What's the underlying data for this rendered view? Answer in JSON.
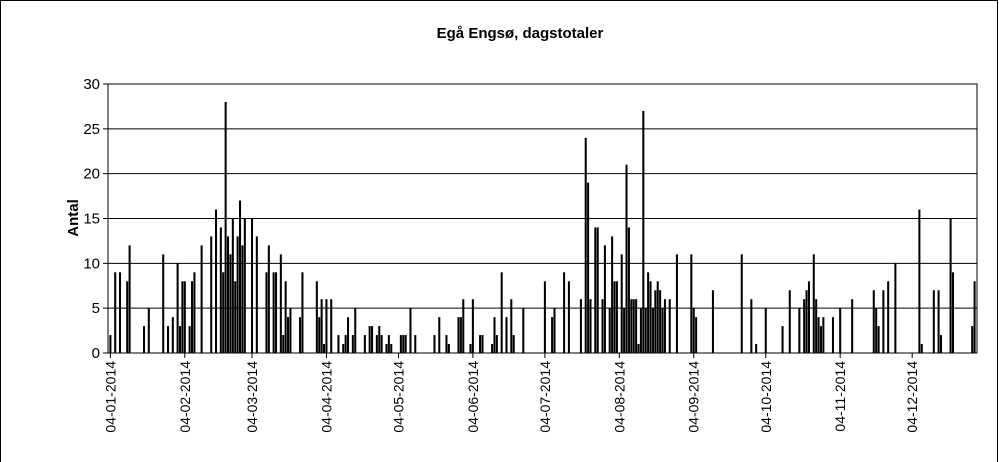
{
  "chart_data": {
    "type": "bar",
    "title": "Egå Engsø, dagstotaler",
    "y_label": "Antal",
    "x": [
      "2014-01-04",
      "2014-01-06",
      "2014-01-08",
      "2014-01-11",
      "2014-01-12",
      "2014-01-18",
      "2014-01-20",
      "2014-01-26",
      "2014-01-28",
      "2014-01-30",
      "2014-02-01",
      "2014-02-02",
      "2014-02-03",
      "2014-02-04",
      "2014-02-06",
      "2014-02-07",
      "2014-02-08",
      "2014-02-11",
      "2014-02-15",
      "2014-02-17",
      "2014-02-19",
      "2014-02-20",
      "2014-02-21",
      "2014-02-22",
      "2014-02-23",
      "2014-02-24",
      "2014-02-25",
      "2014-02-26",
      "2014-02-27",
      "2014-02-28",
      "2014-03-01",
      "2014-03-04",
      "2014-03-06",
      "2014-03-10",
      "2014-03-11",
      "2014-03-13",
      "2014-03-14",
      "2014-03-16",
      "2014-03-17",
      "2014-03-18",
      "2014-03-19",
      "2014-03-20",
      "2014-03-24",
      "2014-03-25",
      "2014-03-31",
      "2014-04-01",
      "2014-04-02",
      "2014-04-03",
      "2014-04-04",
      "2014-04-06",
      "2014-04-09",
      "2014-04-11",
      "2014-04-12",
      "2014-04-13",
      "2014-04-15",
      "2014-04-16",
      "2014-04-20",
      "2014-04-22",
      "2014-04-23",
      "2014-04-25",
      "2014-04-26",
      "2014-04-27",
      "2014-04-29",
      "2014-04-30",
      "2014-05-01",
      "2014-05-05",
      "2014-05-06",
      "2014-05-07",
      "2014-05-09",
      "2014-05-11",
      "2014-05-19",
      "2014-05-21",
      "2014-05-24",
      "2014-05-25",
      "2014-05-29",
      "2014-05-30",
      "2014-05-31",
      "2014-06-03",
      "2014-06-04",
      "2014-06-07",
      "2014-06-08",
      "2014-06-12",
      "2014-06-13",
      "2014-06-14",
      "2014-06-16",
      "2014-06-18",
      "2014-06-20",
      "2014-06-21",
      "2014-06-25",
      "2014-07-04",
      "2014-07-07",
      "2014-07-08",
      "2014-07-12",
      "2014-07-14",
      "2014-07-19",
      "2014-07-21",
      "2014-07-22",
      "2014-07-23",
      "2014-07-25",
      "2014-07-26",
      "2014-07-28",
      "2014-07-29",
      "2014-07-31",
      "2014-08-01",
      "2014-08-02",
      "2014-08-03",
      "2014-08-05",
      "2014-08-06",
      "2014-08-07",
      "2014-08-08",
      "2014-08-09",
      "2014-08-10",
      "2014-08-11",
      "2014-08-12",
      "2014-08-13",
      "2014-08-14",
      "2014-08-15",
      "2014-08-16",
      "2014-08-17",
      "2014-08-18",
      "2014-08-19",
      "2014-08-20",
      "2014-08-21",
      "2014-08-22",
      "2014-08-23",
      "2014-08-25",
      "2014-08-28",
      "2014-09-03",
      "2014-09-04",
      "2014-09-05",
      "2014-09-12",
      "2014-09-24",
      "2014-09-28",
      "2014-09-30",
      "2014-10-04",
      "2014-10-11",
      "2014-10-14",
      "2014-10-18",
      "2014-10-20",
      "2014-10-21",
      "2014-10-22",
      "2014-10-24",
      "2014-10-25",
      "2014-10-26",
      "2014-10-27",
      "2014-10-28",
      "2014-11-01",
      "2014-11-04",
      "2014-11-09",
      "2014-11-18",
      "2014-11-19",
      "2014-11-20",
      "2014-11-22",
      "2014-11-24",
      "2014-11-27",
      "2014-12-07",
      "2014-12-08",
      "2014-12-13",
      "2014-12-15",
      "2014-12-16",
      "2014-12-20",
      "2014-12-21",
      "2014-12-29",
      "2014-12-30"
    ],
    "values": [
      2,
      9,
      9,
      8,
      12,
      3,
      5,
      11,
      3,
      4,
      10,
      3,
      8,
      8,
      3,
      8,
      9,
      12,
      13,
      16,
      14,
      9,
      28,
      13,
      11,
      15,
      8,
      13,
      17,
      12,
      15,
      15,
      13,
      9,
      12,
      9,
      9,
      11,
      2,
      8,
      4,
      5,
      4,
      9,
      8,
      4,
      6,
      1,
      6,
      6,
      2,
      1,
      2,
      4,
      2,
      5,
      2,
      3,
      3,
      2,
      3,
      2,
      1,
      2,
      1,
      2,
      2,
      2,
      5,
      2,
      2,
      4,
      2,
      1,
      4,
      4,
      6,
      1,
      6,
      2,
      2,
      1,
      4,
      2,
      9,
      4,
      6,
      2,
      5,
      8,
      4,
      5,
      9,
      8,
      6,
      24,
      19,
      6,
      14,
      14,
      6,
      12,
      5,
      13,
      8,
      8,
      11,
      5,
      21,
      14,
      6,
      6,
      6,
      1,
      5,
      27,
      5,
      9,
      8,
      5,
      7,
      8,
      7,
      5,
      6,
      6,
      11,
      11,
      5,
      4,
      7,
      11,
      6,
      1,
      5,
      3,
      7,
      5,
      6,
      7,
      8,
      11,
      6,
      4,
      3,
      4,
      4,
      5,
      6,
      7,
      5,
      3,
      7,
      8,
      10,
      16,
      1,
      7,
      7,
      2,
      15,
      9,
      3,
      8
    ],
    "color": "#000000",
    "xlim": [
      "2014-01-03",
      "2014-12-31"
    ],
    "xticks": [
      {
        "value": "2014-01-04",
        "label": "04-01-2014"
      },
      {
        "value": "2014-02-04",
        "label": "04-02-2014"
      },
      {
        "value": "2014-03-04",
        "label": "04-03-2014"
      },
      {
        "value": "2014-04-04",
        "label": "04-04-2014"
      },
      {
        "value": "2014-05-04",
        "label": "04-05-2014"
      },
      {
        "value": "2014-06-04",
        "label": "04-06-2014"
      },
      {
        "value": "2014-07-04",
        "label": "04-07-2014"
      },
      {
        "value": "2014-08-04",
        "label": "04-08-2014"
      },
      {
        "value": "2014-09-04",
        "label": "04-09-2014"
      },
      {
        "value": "2014-10-04",
        "label": "04-10-2014"
      },
      {
        "value": "2014-11-04",
        "label": "04-11-2014"
      },
      {
        "value": "2014-12-04",
        "label": "04-12-2014"
      }
    ],
    "ylim": [
      0,
      30
    ],
    "yticks": [
      0,
      5,
      10,
      15,
      20,
      25,
      30
    ],
    "grid": true
  }
}
